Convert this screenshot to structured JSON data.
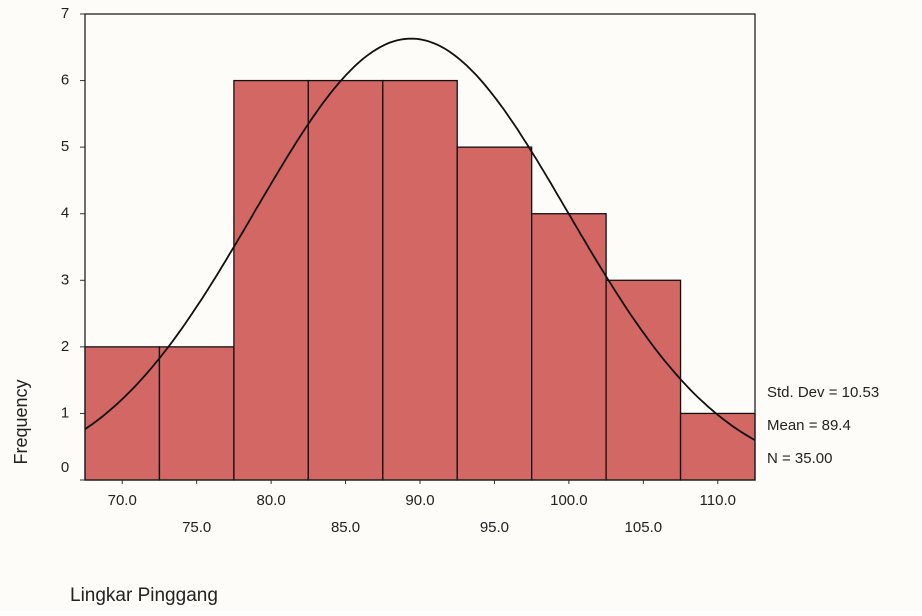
{
  "chart_data": {
    "type": "histogram",
    "x_label": "Lingkar Pinggang",
    "y_label": "Frequency",
    "bins": [
      67.5,
      72.5,
      77.5,
      82.5,
      87.5,
      92.5,
      97.5,
      102.5,
      107.5,
      112.5
    ],
    "values": [
      2,
      2,
      6,
      6,
      6,
      5,
      4,
      3,
      1
    ],
    "color": "#cd5652",
    "xlim": [
      67.5,
      112.5
    ],
    "ylim": [
      0,
      7
    ],
    "xticks": [
      {
        "value": 70,
        "label": "70.0"
      },
      {
        "value": 75,
        "label": "75.0"
      },
      {
        "value": 80,
        "label": "80.0"
      },
      {
        "value": 85,
        "label": "85.0"
      },
      {
        "value": 90,
        "label": "90.0"
      },
      {
        "value": 95,
        "label": "95.0"
      },
      {
        "value": 100,
        "label": "100.0"
      },
      {
        "value": 105,
        "label": "105.0"
      },
      {
        "value": 110,
        "label": "110.0"
      }
    ],
    "yticks": [
      0,
      1,
      2,
      3,
      4,
      5,
      6,
      7
    ],
    "normal_curve": true,
    "stats": {
      "std_dev": {
        "value": 10.53,
        "label": "Std. Dev = 10.53"
      },
      "mean": {
        "value": 89.4,
        "label": "Mean = 89.4"
      },
      "n": {
        "value": 35,
        "label": "N = 35.00"
      }
    }
  }
}
